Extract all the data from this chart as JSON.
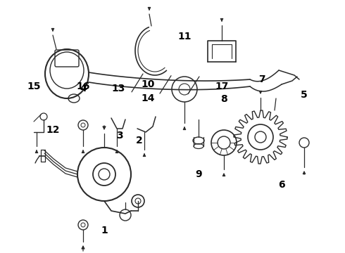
{
  "background_color": "#ffffff",
  "line_color": "#2a2a2a",
  "label_color": "#000000",
  "label_fontsize": 10,
  "label_fontweight": "bold",
  "figsize": [
    4.9,
    3.6
  ],
  "dpi": 100
}
